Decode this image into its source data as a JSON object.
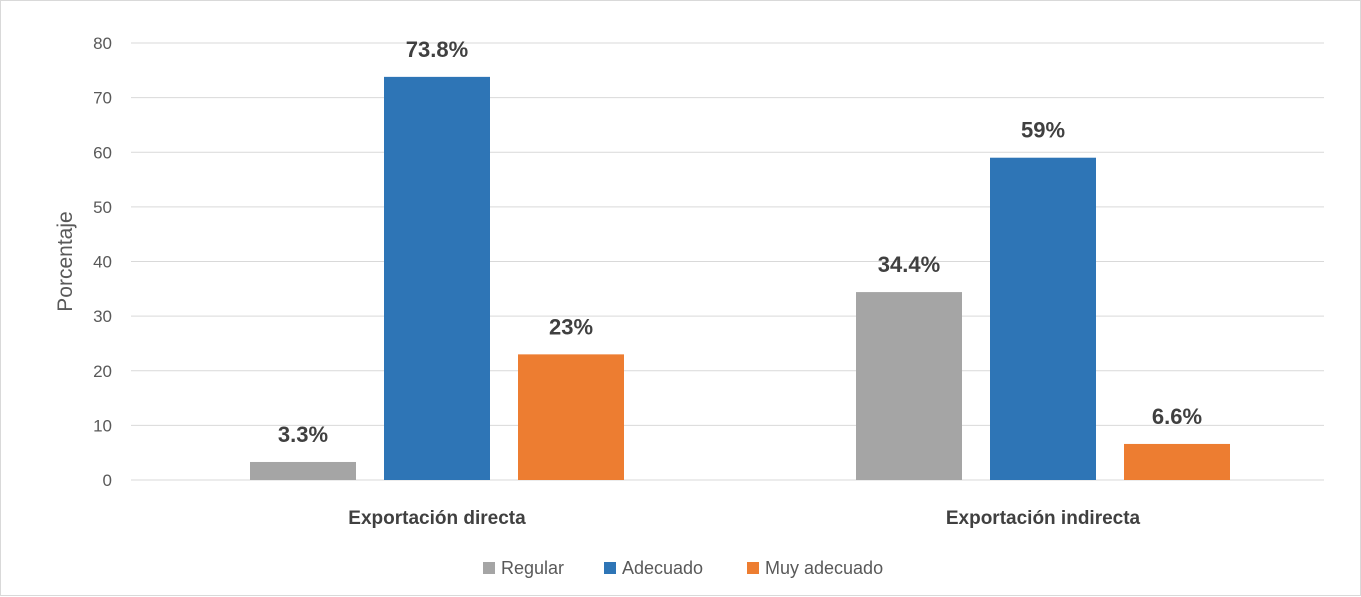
{
  "chart_data": {
    "type": "bar",
    "title": "",
    "xlabel": "",
    "ylabel": "Porcentaje",
    "ylim": [
      0,
      80
    ],
    "yticks": [
      0,
      10,
      20,
      30,
      40,
      50,
      60,
      70,
      80
    ],
    "grid": true,
    "legend_position": "bottom",
    "categories": [
      "Exportación directa",
      "Exportación indirecta"
    ],
    "series": [
      {
        "name": "Regular",
        "values": [
          3.3,
          34.4
        ],
        "labels": [
          "3.3%",
          "34.4%"
        ],
        "color": "#a5a5a5"
      },
      {
        "name": "Adecuado",
        "values": [
          73.8,
          59
        ],
        "labels": [
          "73.8%",
          "59%"
        ],
        "color": "#2e75b6"
      },
      {
        "name": "Muy adecuado",
        "values": [
          23,
          6.6
        ],
        "labels": [
          "23%",
          "6.6%"
        ],
        "color": "#ed7d31"
      }
    ]
  }
}
